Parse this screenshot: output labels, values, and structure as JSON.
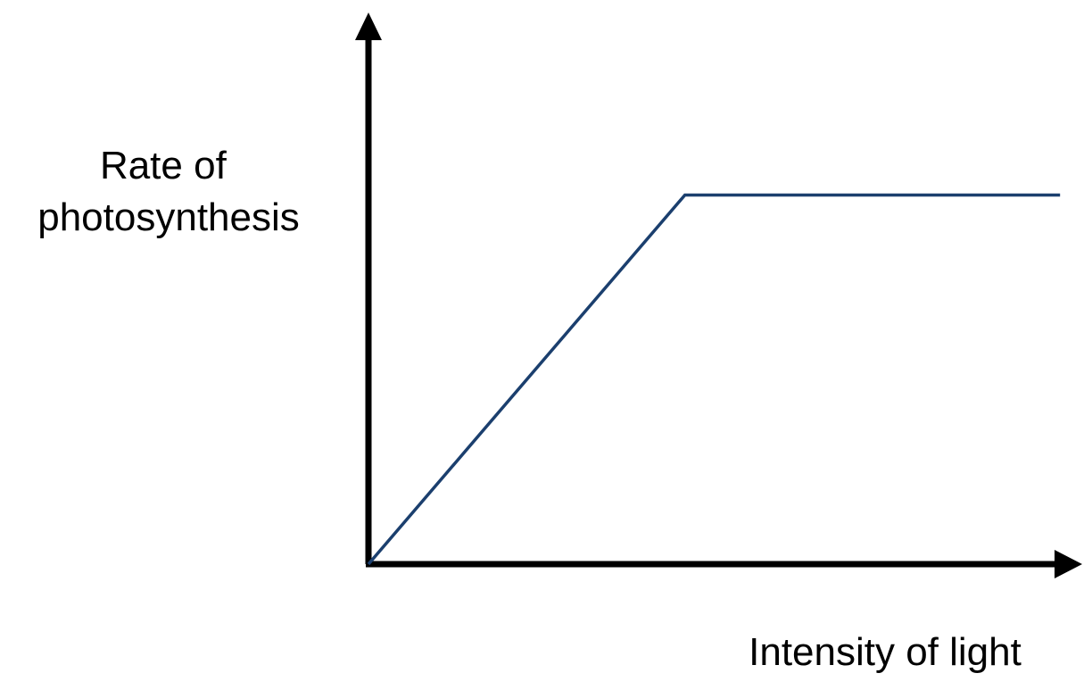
{
  "chart_data": {
    "type": "line",
    "title": "",
    "xlabel": "Intensity of light",
    "ylabel_lines": [
      "Rate of",
      "photosynthesis"
    ],
    "xlim": [
      0,
      100
    ],
    "ylim": [
      0,
      100
    ],
    "grid": false,
    "ticks": false,
    "series": [
      {
        "x": [
          0,
          45.3,
          99
        ],
        "y": [
          0,
          70.8,
          70.8
        ],
        "color": "#1b3f6e"
      }
    ]
  },
  "colors": {
    "axis": "#000000",
    "line": "#1b3f6e",
    "background": "#ffffff"
  }
}
